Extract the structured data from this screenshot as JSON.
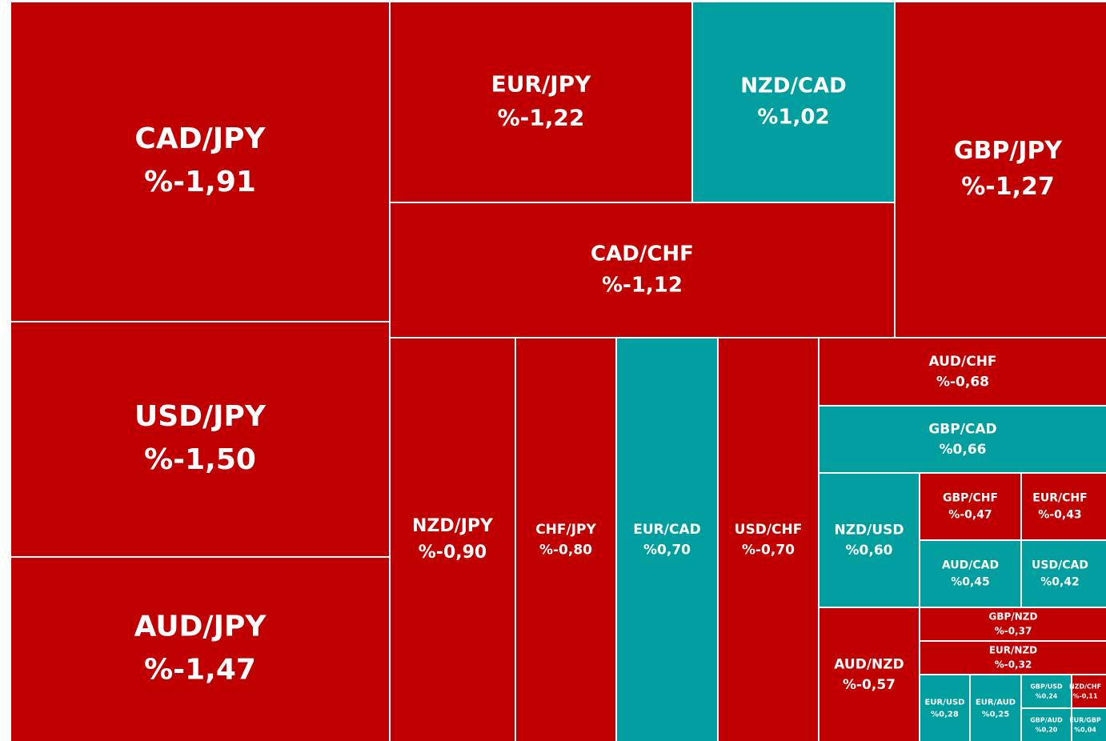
{
  "chart_data": {
    "type": "treemap",
    "categories": [
      "CAD/JPY",
      "USD/JPY",
      "AUD/JPY",
      "EUR/JPY",
      "NZD/CAD",
      "GBP/JPY",
      "CAD/CHF",
      "NZD/JPY",
      "CHF/JPY",
      "EUR/CAD",
      "USD/CHF",
      "AUD/CHF",
      "GBP/CAD",
      "NZD/USD",
      "GBP/CHF",
      "EUR/CHF",
      "AUD/CAD",
      "USD/CAD",
      "AUD/NZD",
      "GBP/NZD",
      "EUR/NZD",
      "EUR/USD",
      "EUR/AUD",
      "GBP/USD",
      "NZD/CHF",
      "GBP/AUD",
      "EUR/GBP"
    ],
    "values": [
      -1.91,
      -1.5,
      -1.47,
      -1.22,
      1.02,
      -1.27,
      -1.12,
      -0.9,
      -0.8,
      0.7,
      -0.7,
      -0.68,
      0.66,
      0.6,
      -0.47,
      -0.43,
      0.45,
      0.42,
      -0.57,
      -0.37,
      -0.32,
      0.28,
      0.25,
      0.24,
      -0.11,
      0.2,
      0.04
    ],
    "value_labels": [
      "%-1,91",
      "%-1,50",
      "%-1,47",
      "%-1,22",
      "%1,02",
      "%-1,27",
      "%-1,12",
      "%-0,90",
      "%-0,80",
      "%0,70",
      "%-0,70",
      "%-0,68",
      "%0,66",
      "%0,60",
      "%-0,47",
      "%-0,43",
      "%0,45",
      "%0,42",
      "%-0,57",
      "%-0,37",
      "%-0,32",
      "%0,28",
      "%0,25",
      "%0,24",
      "%-0,11",
      "%0,20",
      "%0,04"
    ],
    "colors": {
      "positive": "#009e9e",
      "negative": "#c00000"
    }
  }
}
